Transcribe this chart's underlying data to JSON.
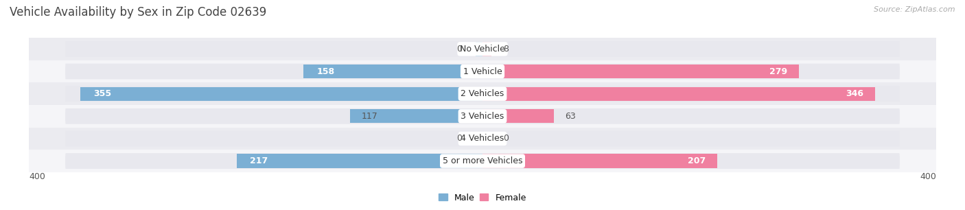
{
  "title": "Vehicle Availability by Sex in Zip Code 02639",
  "source": "Source: ZipAtlas.com",
  "categories": [
    "No Vehicle",
    "1 Vehicle",
    "2 Vehicles",
    "3 Vehicles",
    "4 Vehicles",
    "5 or more Vehicles"
  ],
  "male_values": [
    0,
    158,
    355,
    117,
    0,
    217
  ],
  "female_values": [
    8,
    279,
    346,
    63,
    0,
    207
  ],
  "male_color": "#7bafd4",
  "female_color": "#f080a0",
  "track_color": "#e8e8ee",
  "row_bg_even": "#f5f5f8",
  "row_bg_odd": "#ebebf0",
  "axis_max": 400,
  "legend_male": "Male",
  "legend_female": "Female",
  "title_fontsize": 12,
  "source_fontsize": 8,
  "label_fontsize": 9,
  "category_fontsize": 9
}
